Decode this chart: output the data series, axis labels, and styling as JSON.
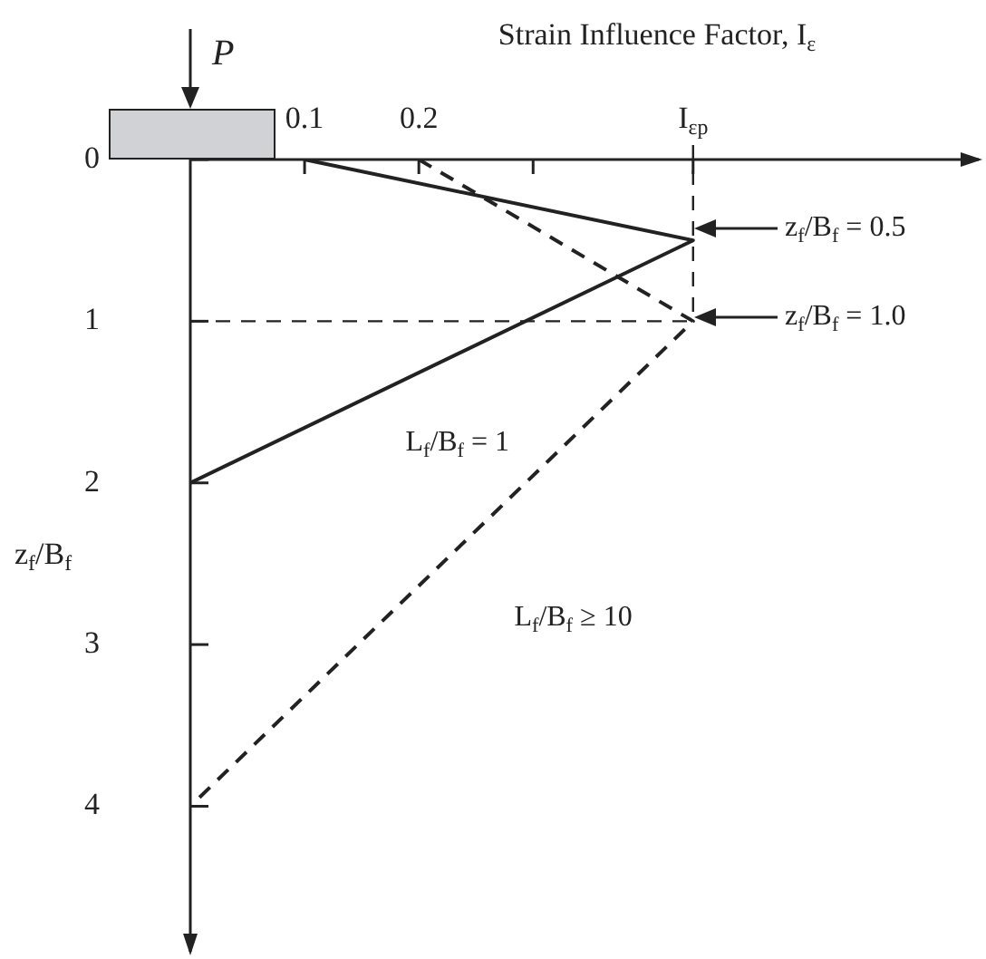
{
  "chart_data": {
    "type": "line",
    "xlabel": "Strain Influence Factor, I$_{ε}$",
    "ylabel": "z$_{f}$/B$_{f}$",
    "xlim": [
      0,
      0.69
    ],
    "ylim": [
      4.9,
      0
    ],
    "xticks": [
      0.1,
      0.2,
      {
        "value": 0.3,
        "label": null
      },
      {
        "value": 0.44,
        "label": "I$_{εp}$"
      }
    ],
    "yticks": [
      0,
      1,
      2,
      3,
      4
    ],
    "grid": false,
    "legend": false,
    "marker": "none",
    "series": [
      {
        "name": "L$_{f}$/B$_{f}$ = 1",
        "color": "#222222",
        "line_style": "solid",
        "x": [
          0.1,
          0.44,
          0
        ],
        "values": [
          0,
          0.5,
          2
        ]
      },
      {
        "name": "L$_{f}$/B$_{f}$ ≥ 10",
        "color": "#222222",
        "line_style": "dashed",
        "x": [
          0.2,
          0.44,
          0
        ],
        "values": [
          0,
          1,
          4
        ]
      }
    ],
    "ref_lines": [
      {
        "axis": "x",
        "value": 0.44,
        "line_style": "dashed"
      },
      {
        "axis": "y",
        "value": 1,
        "line_style": "dashed"
      }
    ],
    "annotations": [
      "P",
      "z$_{f}$/B$_{f}$ = 0.5",
      "z$_{f}$/B$_{f}$ = 1.0"
    ]
  }
}
